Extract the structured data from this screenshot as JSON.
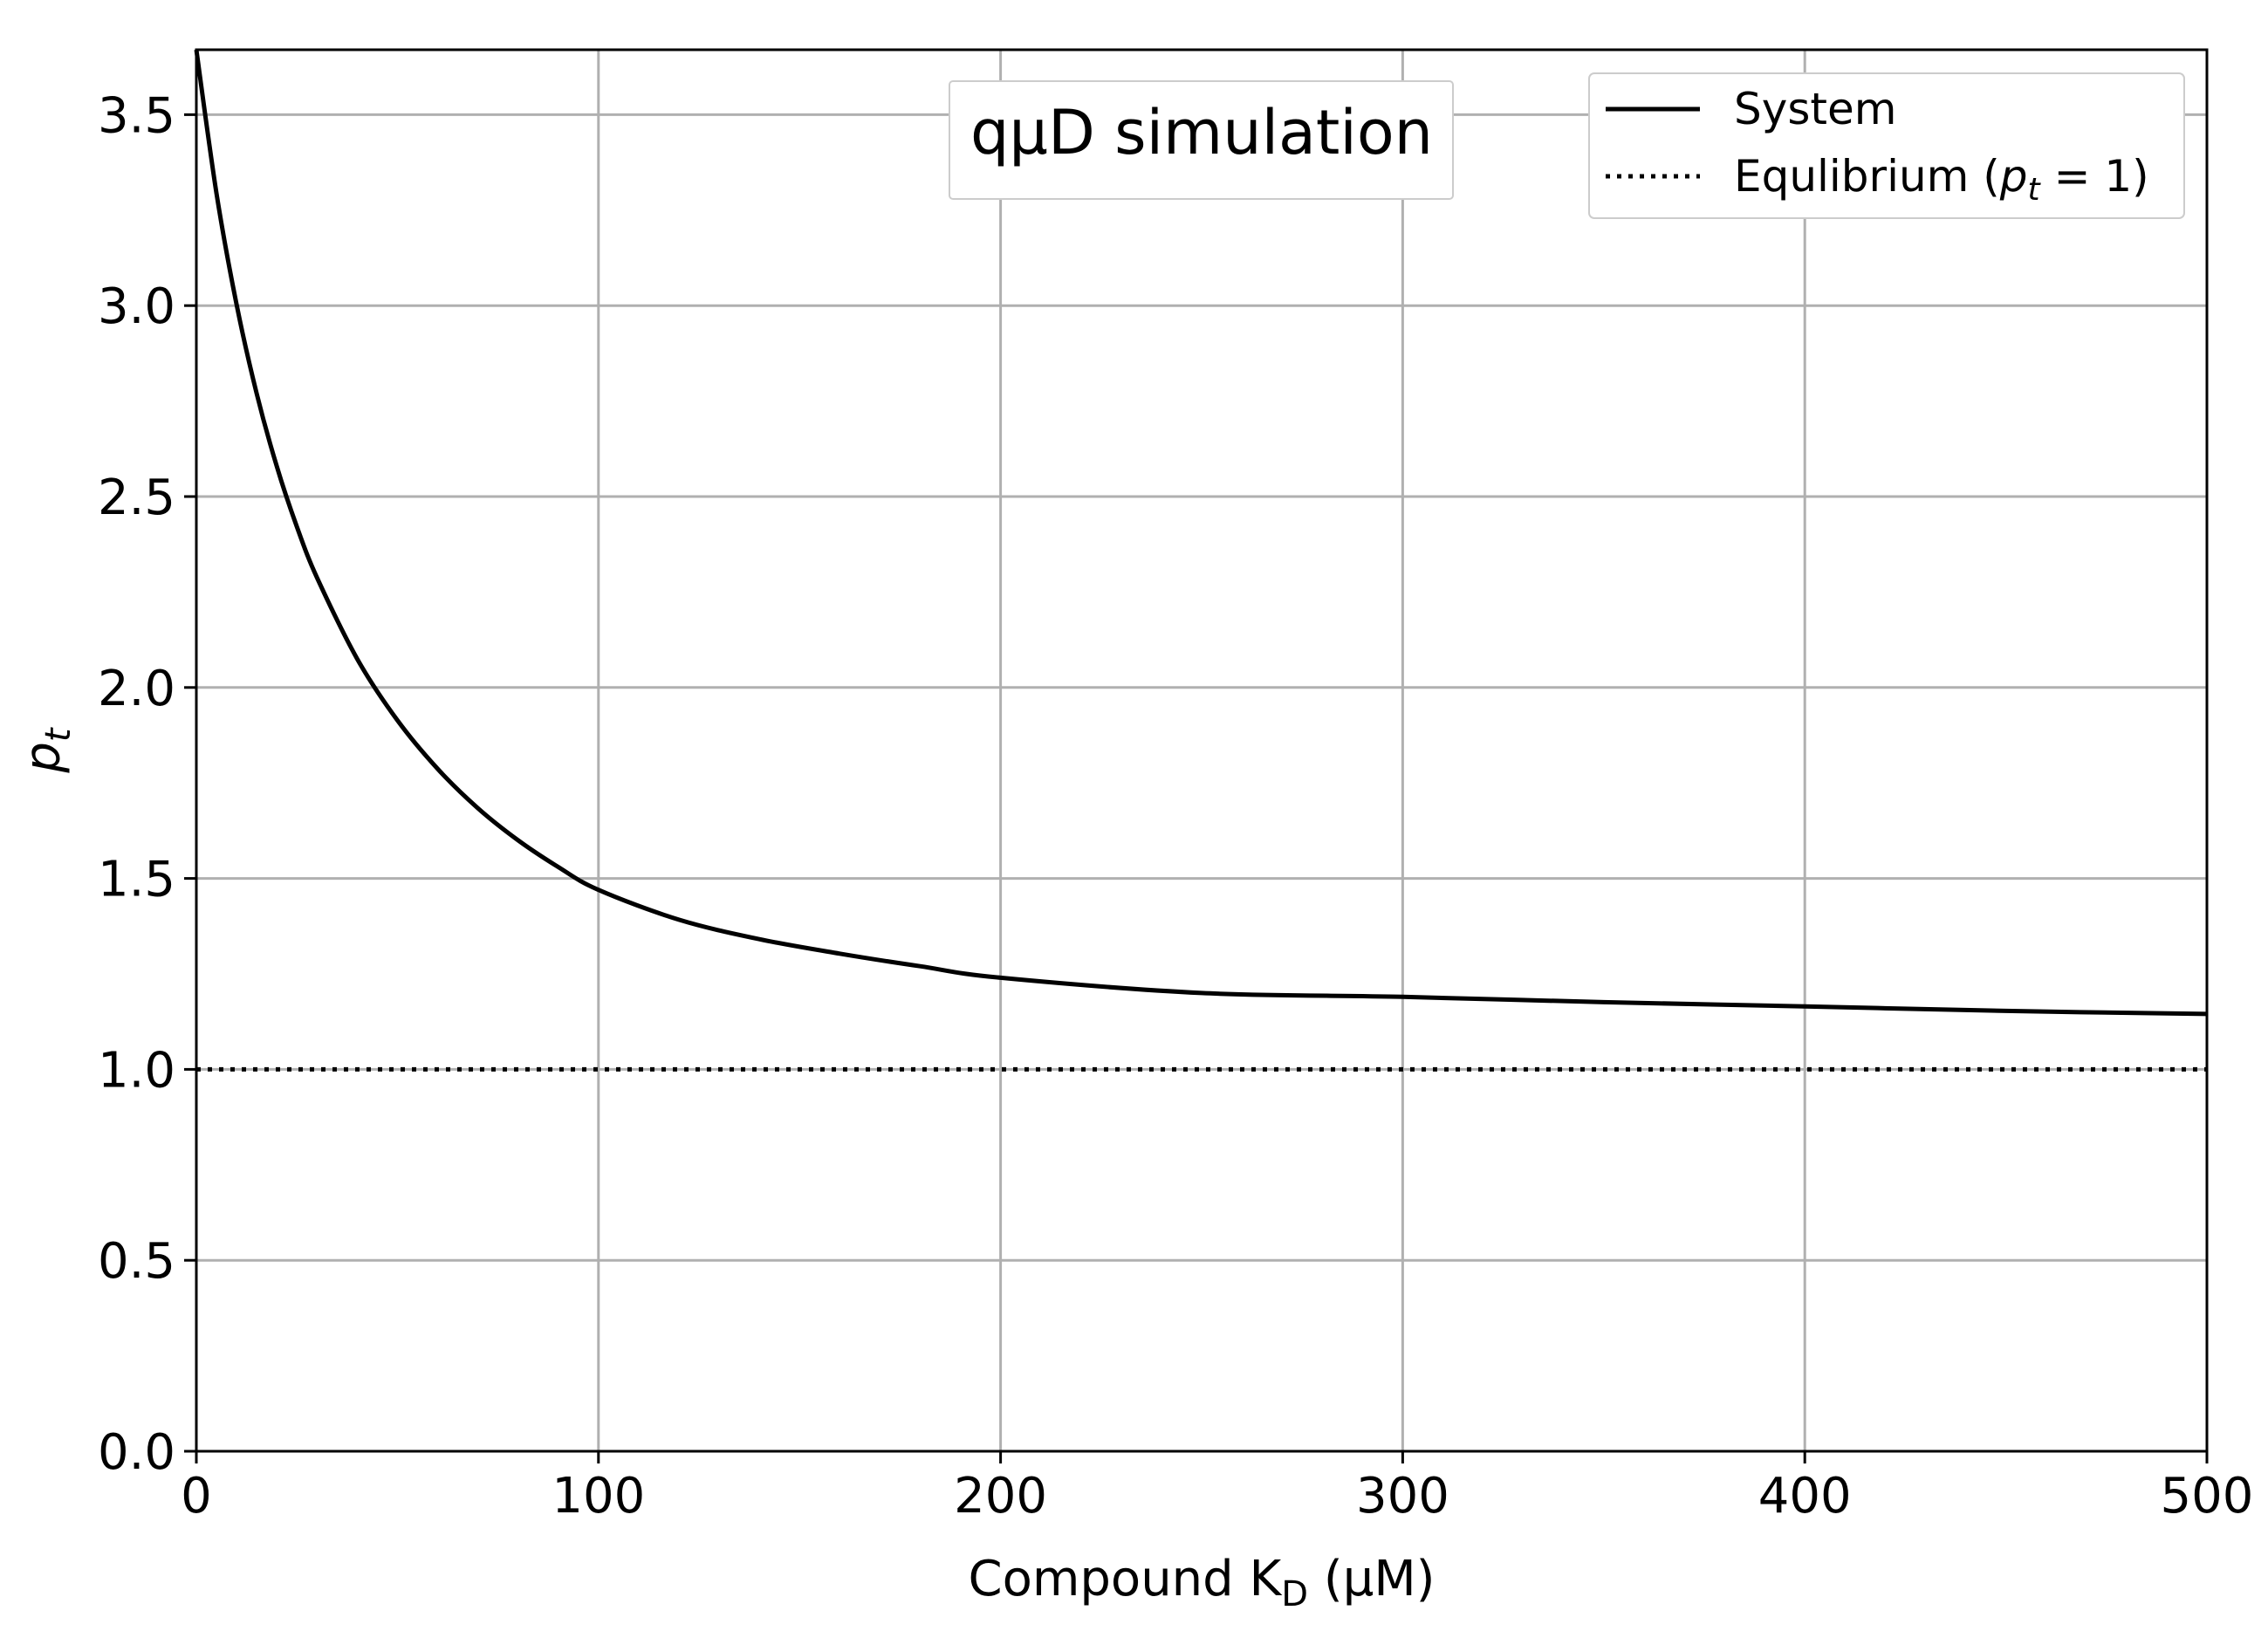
{
  "chart_data": {
    "type": "line",
    "title": "qμD simulation",
    "xlabel": "Compound K",
    "xlabel_sub": "D",
    "xlabel_unit": " (μM)",
    "ylabel": "p",
    "ylabel_sub": "t",
    "xlim": [
      0,
      500
    ],
    "ylim": [
      0,
      3.67
    ],
    "x_ticks": [
      0,
      100,
      200,
      300,
      400,
      500
    ],
    "x_tick_labels": [
      "0",
      "100",
      "200",
      "300",
      "400",
      "500"
    ],
    "y_ticks": [
      0.0,
      0.5,
      1.0,
      1.5,
      2.0,
      2.5,
      3.0,
      3.5
    ],
    "y_tick_labels": [
      "0.0",
      "0.5",
      "1.0",
      "1.5",
      "2.0",
      "2.5",
      "3.0",
      "3.5"
    ],
    "grid": true,
    "legend_position": "top-right",
    "legend": {
      "system_label": "System",
      "equilibrium_label_pre": "Equlibrium (",
      "equilibrium_label_var": "p",
      "equilibrium_label_sub": "t",
      "equilibrium_label_post": " = 1)"
    },
    "series": [
      {
        "name": "System",
        "style": "solid",
        "color": "#000000",
        "x": [
          0,
          5,
          10,
          15,
          20,
          25,
          30,
          40,
          50,
          60,
          70,
          80,
          90,
          100,
          120,
          140,
          160,
          180,
          200,
          250,
          300,
          350,
          400,
          450,
          500
        ],
        "y": [
          3.67,
          3.295,
          3.003,
          2.77,
          2.579,
          2.421,
          2.288,
          2.075,
          1.914,
          1.787,
          1.684,
          1.6,
          1.53,
          1.47,
          1.392,
          1.341,
          1.303,
          1.27,
          1.24,
          1.2,
          1.19,
          1.176,
          1.165,
          1.153,
          1.145
        ]
      },
      {
        "name": "Equlibrium (p_t = 1)",
        "style": "dotted",
        "color": "#000000",
        "x": [
          0,
          500
        ],
        "y": [
          1.0,
          1.0
        ]
      }
    ]
  },
  "colors": {
    "grid": "#b0b0b0",
    "axis": "#000000",
    "legend_border": "#cccccc"
  }
}
